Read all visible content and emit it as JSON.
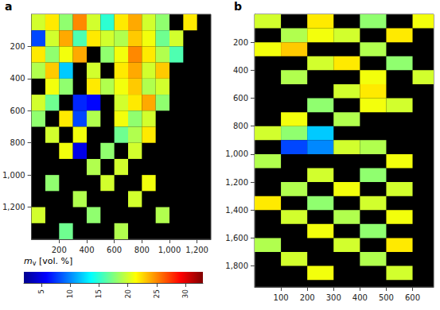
{
  "chart_data": [
    {
      "type": "heatmap",
      "title": "a",
      "xlim": [
        0,
        1300
      ],
      "ylim": [
        0,
        1400
      ],
      "xticks": [
        200,
        400,
        600,
        800,
        1000,
        1200
      ],
      "yticks": [
        200,
        400,
        600,
        800,
        1000,
        1200
      ],
      "cell_size": 100,
      "cells": [
        [
          50,
          50,
          20
        ],
        [
          150,
          50,
          22
        ],
        [
          250,
          50,
          18
        ],
        [
          350,
          50,
          25
        ],
        [
          450,
          50,
          20
        ],
        [
          550,
          50,
          15
        ],
        [
          650,
          50,
          22
        ],
        [
          750,
          50,
          24
        ],
        [
          850,
          50,
          20
        ],
        [
          950,
          50,
          18
        ],
        [
          1150,
          50,
          22
        ],
        [
          50,
          150,
          8
        ],
        [
          150,
          150,
          20
        ],
        [
          250,
          150,
          24
        ],
        [
          350,
          150,
          16
        ],
        [
          450,
          150,
          22
        ],
        [
          550,
          150,
          20
        ],
        [
          650,
          150,
          19
        ],
        [
          750,
          150,
          23
        ],
        [
          850,
          150,
          21
        ],
        [
          950,
          150,
          17
        ],
        [
          1050,
          150,
          20
        ],
        [
          50,
          250,
          22
        ],
        [
          150,
          250,
          18
        ],
        [
          250,
          250,
          21
        ],
        [
          350,
          250,
          24
        ],
        [
          550,
          250,
          18
        ],
        [
          650,
          250,
          21
        ],
        [
          750,
          250,
          25
        ],
        [
          850,
          250,
          22
        ],
        [
          950,
          250,
          19
        ],
        [
          1050,
          250,
          16
        ],
        [
          50,
          350,
          19
        ],
        [
          150,
          350,
          23
        ],
        [
          250,
          350,
          12
        ],
        [
          450,
          350,
          20
        ],
        [
          650,
          350,
          22
        ],
        [
          750,
          350,
          24
        ],
        [
          850,
          350,
          20
        ],
        [
          950,
          350,
          23
        ],
        [
          150,
          450,
          21
        ],
        [
          250,
          450,
          18
        ],
        [
          450,
          450,
          22
        ],
        [
          550,
          450,
          19
        ],
        [
          650,
          450,
          21
        ],
        [
          750,
          450,
          23
        ],
        [
          850,
          450,
          19
        ],
        [
          950,
          450,
          20
        ],
        [
          50,
          550,
          20
        ],
        [
          150,
          550,
          17
        ],
        [
          350,
          550,
          7
        ],
        [
          450,
          550,
          6
        ],
        [
          650,
          550,
          20
        ],
        [
          750,
          550,
          22
        ],
        [
          850,
          550,
          24
        ],
        [
          950,
          550,
          18
        ],
        [
          50,
          650,
          18
        ],
        [
          250,
          650,
          22
        ],
        [
          350,
          650,
          8
        ],
        [
          450,
          650,
          19
        ],
        [
          650,
          650,
          21
        ],
        [
          750,
          650,
          18
        ],
        [
          850,
          650,
          20
        ],
        [
          150,
          750,
          20
        ],
        [
          350,
          750,
          21
        ],
        [
          650,
          750,
          17
        ],
        [
          750,
          750,
          19
        ],
        [
          850,
          750,
          22
        ],
        [
          250,
          850,
          21
        ],
        [
          350,
          850,
          5
        ],
        [
          550,
          850,
          18
        ],
        [
          750,
          850,
          20
        ],
        [
          450,
          950,
          19
        ],
        [
          650,
          950,
          20
        ],
        [
          150,
          1050,
          18
        ],
        [
          550,
          1050,
          20
        ],
        [
          850,
          1050,
          21
        ],
        [
          350,
          1150,
          19
        ],
        [
          750,
          1150,
          20
        ],
        [
          50,
          1250,
          20
        ],
        [
          450,
          1250,
          18
        ],
        [
          950,
          1250,
          19
        ],
        [
          250,
          1350,
          17
        ],
        [
          650,
          1350,
          19
        ]
      ],
      "colorbar": {
        "label": "mv [vol. %]",
        "lim": [
          2,
          33
        ],
        "ticks": [
          5,
          10,
          15,
          20,
          25,
          30
        ]
      }
    },
    {
      "type": "heatmap",
      "title": "b",
      "xlim": [
        0,
        680
      ],
      "ylim": [
        0,
        1950
      ],
      "xticks": [
        100,
        200,
        300,
        400,
        500,
        600
      ],
      "yticks": [
        200,
        400,
        600,
        800,
        1000,
        1200,
        1400,
        1600,
        1800
      ],
      "cell_size": 100,
      "cells": [
        [
          50,
          50,
          20
        ],
        [
          250,
          50,
          22
        ],
        [
          450,
          50,
          18
        ],
        [
          650,
          50,
          21
        ],
        [
          150,
          150,
          19
        ],
        [
          250,
          150,
          21
        ],
        [
          350,
          150,
          20
        ],
        [
          550,
          150,
          22
        ],
        [
          50,
          250,
          21
        ],
        [
          150,
          250,
          23
        ],
        [
          450,
          250,
          19
        ],
        [
          250,
          350,
          20
        ],
        [
          350,
          350,
          22
        ],
        [
          550,
          350,
          18
        ],
        [
          150,
          450,
          19
        ],
        [
          450,
          450,
          21
        ],
        [
          650,
          450,
          20
        ],
        [
          350,
          550,
          20
        ],
        [
          450,
          550,
          22
        ],
        [
          250,
          650,
          18
        ],
        [
          450,
          650,
          21
        ],
        [
          550,
          650,
          20
        ],
        [
          150,
          750,
          21
        ],
        [
          350,
          750,
          19
        ],
        [
          50,
          850,
          20
        ],
        [
          150,
          850,
          18
        ],
        [
          250,
          850,
          12
        ],
        [
          150,
          950,
          8
        ],
        [
          250,
          950,
          10
        ],
        [
          350,
          950,
          20
        ],
        [
          450,
          950,
          19
        ],
        [
          50,
          1050,
          19
        ],
        [
          550,
          1050,
          21
        ],
        [
          250,
          1150,
          20
        ],
        [
          450,
          1150,
          18
        ],
        [
          150,
          1250,
          19
        ],
        [
          350,
          1250,
          21
        ],
        [
          550,
          1250,
          20
        ],
        [
          50,
          1350,
          22
        ],
        [
          250,
          1350,
          18
        ],
        [
          450,
          1350,
          20
        ],
        [
          150,
          1450,
          20
        ],
        [
          350,
          1450,
          19
        ],
        [
          550,
          1450,
          21
        ],
        [
          250,
          1550,
          21
        ],
        [
          450,
          1550,
          18
        ],
        [
          50,
          1650,
          19
        ],
        [
          350,
          1650,
          20
        ],
        [
          550,
          1650,
          22
        ],
        [
          150,
          1750,
          20
        ],
        [
          450,
          1750,
          19
        ],
        [
          250,
          1850,
          21
        ],
        [
          550,
          1850,
          20
        ]
      ]
    }
  ]
}
